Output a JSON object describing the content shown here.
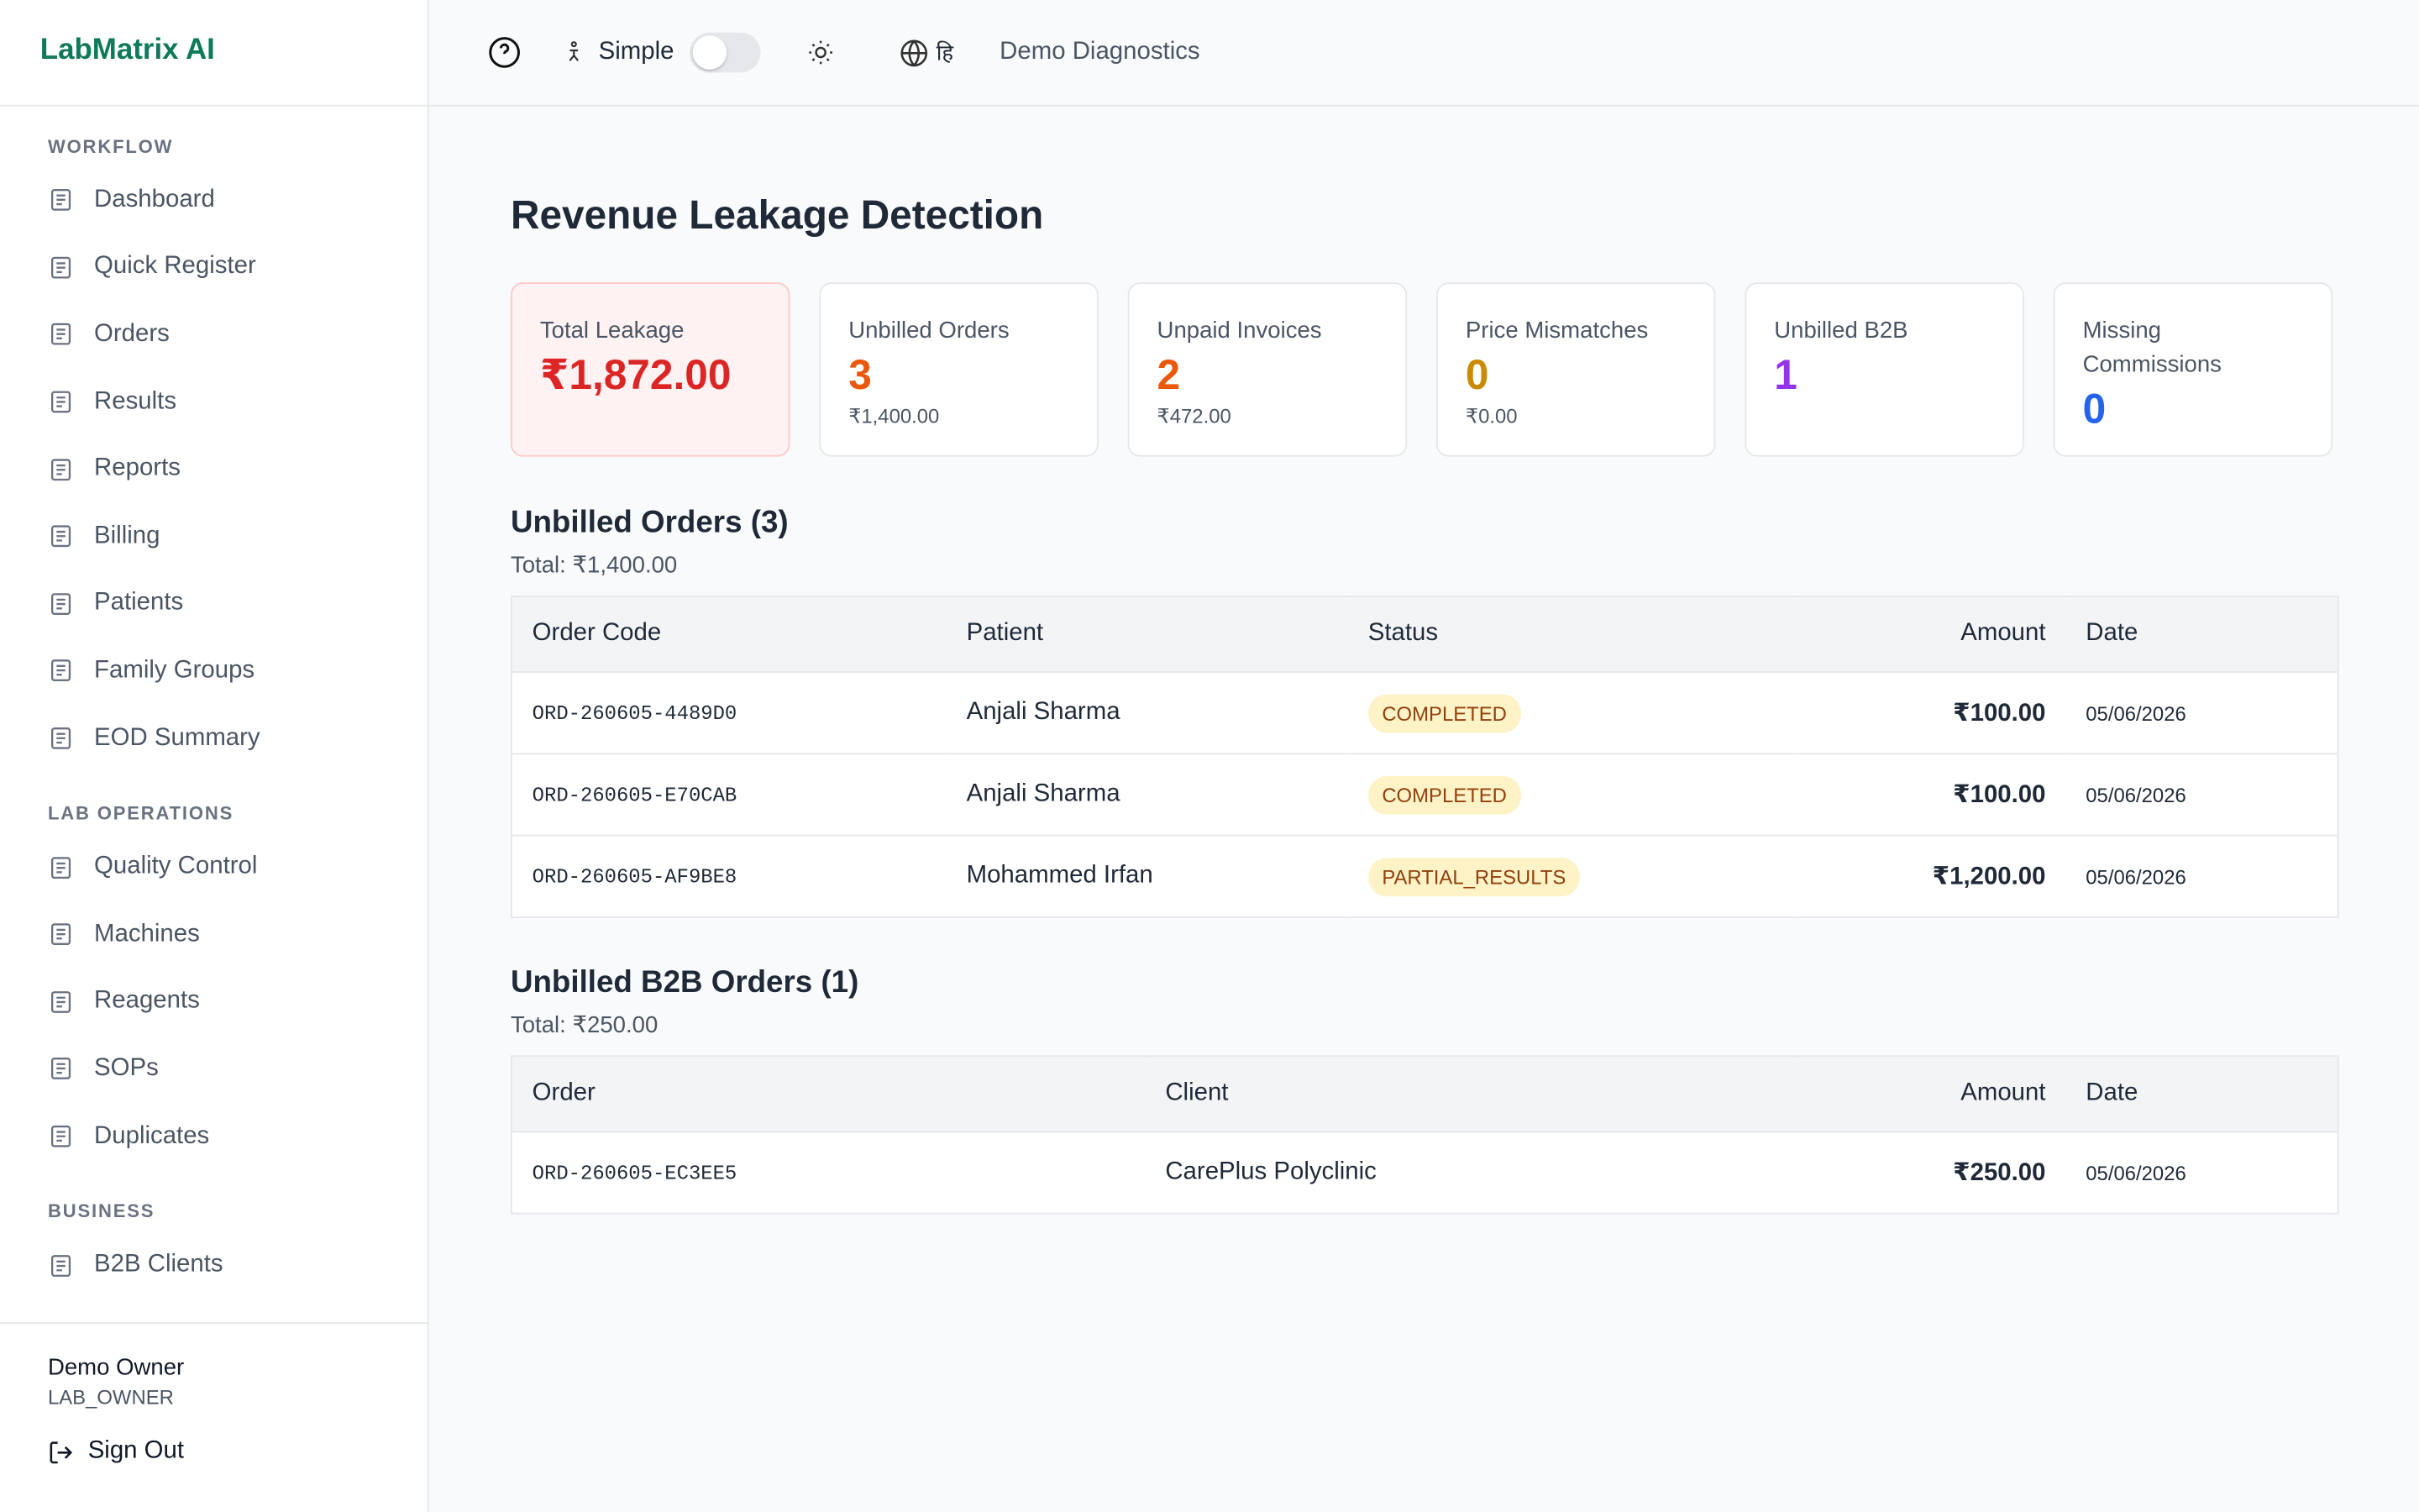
{
  "brand": "LabMatrix AI",
  "topbar": {
    "mode": "Simple",
    "language": "हि",
    "lab": "Demo Diagnostics"
  },
  "sidebar": {
    "sections": [
      {
        "title": "WORKFLOW",
        "items": [
          "Dashboard",
          "Quick Register",
          "Orders",
          "Results",
          "Reports",
          "Billing",
          "Patients",
          "Family Groups",
          "EOD Summary"
        ]
      },
      {
        "title": "LAB OPERATIONS",
        "items": [
          "Quality Control",
          "Machines",
          "Reagents",
          "SOPs",
          "Duplicates"
        ]
      },
      {
        "title": "BUSINESS",
        "items": [
          "B2B Clients"
        ]
      }
    ],
    "user": {
      "name": "Demo Owner",
      "role": "LAB_OWNER"
    },
    "sign_out": "Sign Out"
  },
  "page": {
    "title": "Revenue Leakage Detection",
    "cards": [
      {
        "label": "Total Leakage",
        "value": "₹1,872.00"
      },
      {
        "label": "Unbilled Orders",
        "value": "3",
        "sub": "₹1,400.00"
      },
      {
        "label": "Unpaid Invoices",
        "value": "2",
        "sub": "₹472.00"
      },
      {
        "label": "Price Mismatches",
        "value": "0",
        "sub": "₹0.00"
      },
      {
        "label": "Unbilled B2B",
        "value": "1"
      },
      {
        "label": "Missing Commissions",
        "value": "0"
      }
    ],
    "tables": [
      {
        "title": "Unbilled Orders (3)",
        "total": "Total: ₹1,400.00",
        "columns": [
          "Order Code",
          "Patient",
          "Status",
          "Amount",
          "Date"
        ],
        "rows": [
          [
            "ORD-260605-4489D0",
            "Anjali Sharma",
            "COMPLETED",
            "₹100.00",
            "05/06/2026"
          ],
          [
            "ORD-260605-E70CAB",
            "Anjali Sharma",
            "COMPLETED",
            "₹100.00",
            "05/06/2026"
          ],
          [
            "ORD-260605-AF9BE8",
            "Mohammed Irfan",
            "PARTIAL_RESULTS",
            "₹1,200.00",
            "05/06/2026"
          ]
        ]
      },
      {
        "title": "Unbilled B2B Orders (1)",
        "total": "Total: ₹250.00",
        "columns": [
          "Order",
          "Client",
          "Amount",
          "Date"
        ],
        "rows": [
          [
            "ORD-260605-EC3EE5",
            "CarePlus Polyclinic",
            "₹250.00",
            "05/06/2026"
          ]
        ]
      }
    ]
  }
}
